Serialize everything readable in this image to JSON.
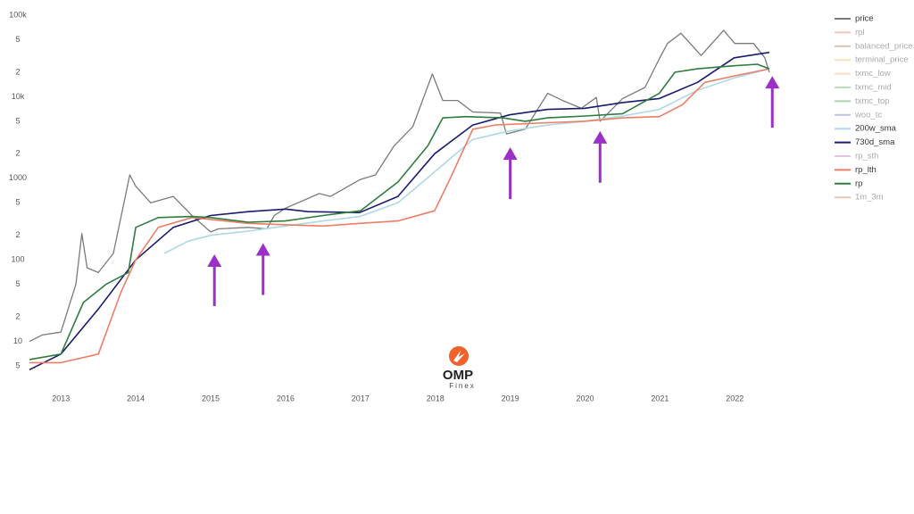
{
  "chart_data": {
    "type": "line",
    "log_y": true,
    "grid": false,
    "legend": "top-right",
    "xlim": [
      2012.58,
      2022.95
    ],
    "xticks": [
      2013,
      2014,
      2015,
      2016,
      2017,
      2018,
      2019,
      2020,
      2021,
      2022
    ],
    "ylim": [
      4,
      100000
    ],
    "yticks": [
      5,
      10,
      {
        "value": 20,
        "label": "2"
      },
      {
        "value": 50,
        "label": "5"
      },
      100,
      {
        "value": 200,
        "label": "2"
      },
      {
        "value": 500,
        "label": "5"
      },
      1000,
      {
        "value": 2000,
        "label": "2"
      },
      {
        "value": 5000,
        "label": "5"
      },
      {
        "value": 10000,
        "label": "10k"
      },
      {
        "value": 20000,
        "label": "2"
      },
      {
        "value": 50000,
        "label": "5"
      },
      {
        "value": 100000,
        "label": "100k"
      }
    ],
    "series": [
      {
        "name": "price",
        "color": "#7a7a7a",
        "visible": true,
        "x": [
          2012.58,
          2012.75,
          2013.0,
          2013.2,
          2013.28,
          2013.35,
          2013.5,
          2013.7,
          2013.92,
          2014.0,
          2014.2,
          2014.5,
          2014.75,
          2015.0,
          2015.1,
          2015.5,
          2015.75,
          2015.85,
          2016.0,
          2016.45,
          2016.6,
          2016.99,
          2017.2,
          2017.45,
          2017.7,
          2017.96,
          2018.1,
          2018.3,
          2018.5,
          2018.87,
          2018.95,
          2019.2,
          2019.5,
          2019.7,
          2019.95,
          2020.15,
          2020.2,
          2020.5,
          2020.8,
          2020.99,
          2021.1,
          2021.28,
          2021.55,
          2021.85,
          2022.0,
          2022.25,
          2022.4,
          2022.46
        ],
        "values": [
          10,
          12,
          13,
          50,
          210,
          80,
          70,
          120,
          1100,
          800,
          500,
          600,
          350,
          220,
          240,
          250,
          240,
          350,
          430,
          650,
          600,
          960,
          1100,
          2500,
          4300,
          19000,
          9000,
          9000,
          6500,
          6300,
          3500,
          4000,
          11000,
          9000,
          7200,
          9800,
          5000,
          9500,
          13000,
          29000,
          45000,
          60000,
          32000,
          65000,
          45000,
          45000,
          30000,
          20000
        ]
      },
      {
        "name": "rpl",
        "color": "#f08a73",
        "visible": false
      },
      {
        "name": "balanced_price",
        "color": "#b5826e",
        "visible": false
      },
      {
        "name": "terminal_price",
        "color": "#f5c27a",
        "visible": false
      },
      {
        "name": "txmc_low",
        "color": "#f7b98a",
        "visible": false
      },
      {
        "name": "txmc_mid",
        "color": "#7cbf7c",
        "visible": false
      },
      {
        "name": "txmc_top",
        "color": "#5aa86a",
        "visible": false
      },
      {
        "name": "woo_tc",
        "color": "#8a7fd0",
        "visible": false
      },
      {
        "name": "200w_sma",
        "color": "#add8e6",
        "visible": true,
        "x": [
          2014.38,
          2014.7,
          2015.0,
          2015.5,
          2016.0,
          2016.5,
          2016.99,
          2017.5,
          2017.99,
          2018.5,
          2018.99,
          2019.5,
          2019.99,
          2020.5,
          2020.99,
          2021.5,
          2021.99,
          2022.46
        ],
        "values": [
          120,
          170,
          200,
          225,
          260,
          300,
          340,
          500,
          1200,
          3000,
          3800,
          4500,
          5000,
          5800,
          7000,
          12000,
          17000,
          22000
        ]
      },
      {
        "name": "730d_sma",
        "color": "#1a1a6e",
        "visible": true,
        "x": [
          2012.58,
          2013.0,
          2013.5,
          2014.0,
          2014.5,
          2015.0,
          2015.5,
          2016.0,
          2016.3,
          2016.99,
          2017.5,
          2017.99,
          2018.5,
          2018.99,
          2019.5,
          2019.99,
          2020.5,
          2020.99,
          2021.5,
          2021.99,
          2022.46
        ],
        "values": [
          4.5,
          7,
          25,
          100,
          250,
          350,
          390,
          420,
          390,
          380,
          600,
          2000,
          4500,
          6000,
          7000,
          7200,
          8500,
          9500,
          15000,
          30000,
          35000
        ]
      },
      {
        "name": "rp_sth",
        "color": "#c98ac9",
        "visible": false
      },
      {
        "name": "rp_lth",
        "color": "#ee7d66",
        "visible": true,
        "x": [
          2012.58,
          2013.0,
          2013.5,
          2013.8,
          2014.0,
          2014.3,
          2014.75,
          2015.5,
          2015.99,
          2016.5,
          2016.99,
          2017.5,
          2017.99,
          2018.2,
          2018.5,
          2018.8,
          2019.5,
          2019.99,
          2020.5,
          2020.99,
          2021.3,
          2021.6,
          2021.99,
          2022.46
        ],
        "values": [
          5.5,
          5.5,
          7,
          40,
          100,
          250,
          330,
          280,
          270,
          260,
          280,
          300,
          400,
          1000,
          4000,
          4500,
          4800,
          5000,
          5500,
          5700,
          8000,
          15000,
          18000,
          22000
        ]
      },
      {
        "name": "rp",
        "color": "#2e7d3e",
        "visible": true,
        "x": [
          2012.58,
          2013.0,
          2013.3,
          2013.6,
          2013.9,
          2014.0,
          2014.3,
          2014.75,
          2015.0,
          2015.5,
          2016.0,
          2016.5,
          2017.0,
          2017.5,
          2017.9,
          2018.1,
          2018.4,
          2018.9,
          2019.2,
          2019.5,
          2020.0,
          2020.5,
          2020.99,
          2021.2,
          2021.5,
          2021.99,
          2022.3,
          2022.46
        ],
        "values": [
          6,
          7,
          30,
          50,
          70,
          250,
          330,
          340,
          330,
          290,
          300,
          350,
          400,
          900,
          2500,
          5500,
          5700,
          5500,
          5000,
          5500,
          5800,
          6200,
          11000,
          20000,
          22000,
          24000,
          25000,
          22000
        ]
      },
      {
        "name": "1m_3m",
        "color": "#c9957a",
        "visible": false
      }
    ],
    "arrows": {
      "color": "#9b30c9",
      "x": [
        2015.05,
        2015.7,
        2019.0,
        2020.2,
        2022.5
      ],
      "values": [
        117,
        160,
        2400,
        3800,
        18000
      ]
    },
    "watermark": {
      "title": "OMP",
      "subtitle": "Finex"
    }
  }
}
